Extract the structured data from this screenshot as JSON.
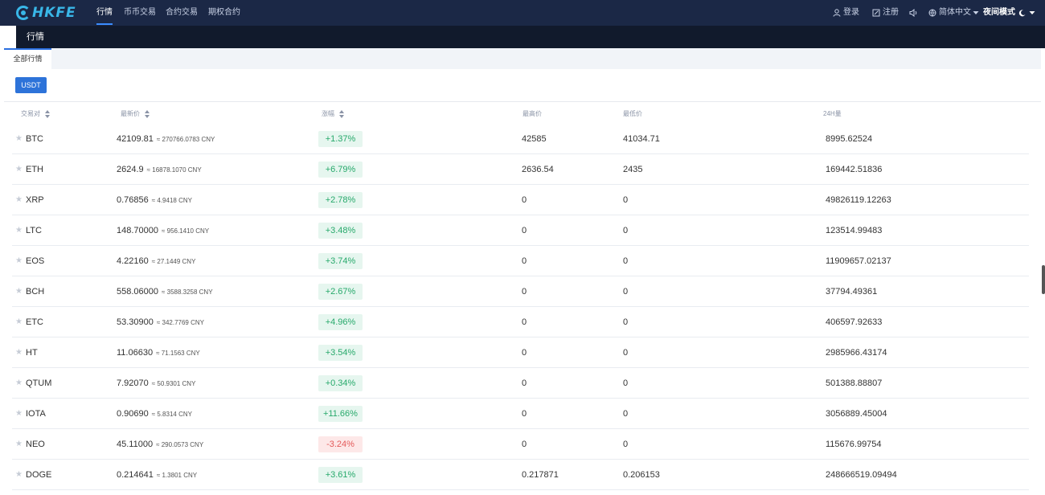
{
  "brand": {
    "logo_text": "HKFE"
  },
  "nav": {
    "items": [
      "行情",
      "币币交易",
      "合约交易",
      "期权合约"
    ],
    "login": "登录",
    "register": "注册",
    "language": "简体中文",
    "night_mode": "夜间模式"
  },
  "subheader": {
    "title": "行情"
  },
  "tabs": [
    {
      "label": "全部行情"
    }
  ],
  "filter": {
    "usdt": "USDT"
  },
  "table": {
    "headers": [
      "交易对",
      "最新价",
      "涨幅",
      "最高价",
      "最低价",
      "24H量"
    ],
    "rows": [
      {
        "pair": "BTC",
        "price": "42109.81",
        "cny": "≈ 270766.0783 CNY",
        "change": "+1.37%",
        "dir": "up",
        "high": "42585",
        "low": "41034.71",
        "volume": "8995.62524"
      },
      {
        "pair": "ETH",
        "price": "2624.9",
        "cny": "≈ 16878.1070 CNY",
        "change": "+6.79%",
        "dir": "up",
        "high": "2636.54",
        "low": "2435",
        "volume": "169442.51836"
      },
      {
        "pair": "XRP",
        "price": "0.76856",
        "cny": "≈ 4.9418 CNY",
        "change": "+2.78%",
        "dir": "up",
        "high": "0",
        "low": "0",
        "volume": "49826119.12263"
      },
      {
        "pair": "LTC",
        "price": "148.70000",
        "cny": "≈ 956.1410 CNY",
        "change": "+3.48%",
        "dir": "up",
        "high": "0",
        "low": "0",
        "volume": "123514.99483"
      },
      {
        "pair": "EOS",
        "price": "4.22160",
        "cny": "≈ 27.1449 CNY",
        "change": "+3.74%",
        "dir": "up",
        "high": "0",
        "low": "0",
        "volume": "11909657.02137"
      },
      {
        "pair": "BCH",
        "price": "558.06000",
        "cny": "≈ 3588.3258 CNY",
        "change": "+2.67%",
        "dir": "up",
        "high": "0",
        "low": "0",
        "volume": "37794.49361"
      },
      {
        "pair": "ETC",
        "price": "53.30900",
        "cny": "≈ 342.7769 CNY",
        "change": "+4.96%",
        "dir": "up",
        "high": "0",
        "low": "0",
        "volume": "406597.92633"
      },
      {
        "pair": "HT",
        "price": "11.06630",
        "cny": "≈ 71.1563 CNY",
        "change": "+3.54%",
        "dir": "up",
        "high": "0",
        "low": "0",
        "volume": "2985966.43174"
      },
      {
        "pair": "QTUM",
        "price": "7.92070",
        "cny": "≈ 50.9301 CNY",
        "change": "+0.34%",
        "dir": "up",
        "high": "0",
        "low": "0",
        "volume": "501388.88807"
      },
      {
        "pair": "IOTA",
        "price": "0.90690",
        "cny": "≈ 5.8314 CNY",
        "change": "+11.66%",
        "dir": "up",
        "high": "0",
        "low": "0",
        "volume": "3056889.45004"
      },
      {
        "pair": "NEO",
        "price": "45.11000",
        "cny": "≈ 290.0573 CNY",
        "change": "-3.24%",
        "dir": "down",
        "high": "0",
        "low": "0",
        "volume": "115676.99754"
      },
      {
        "pair": "DOGE",
        "price": "0.214641",
        "cny": "≈ 1.3801 CNY",
        "change": "+3.61%",
        "dir": "up",
        "high": "0.217871",
        "low": "0.206153",
        "volume": "248666519.09494"
      }
    ]
  },
  "colors": {
    "nav_bg": "#1b2846",
    "accent": "#2d73d9",
    "up": "#27a96b",
    "down": "#e45a5a"
  }
}
